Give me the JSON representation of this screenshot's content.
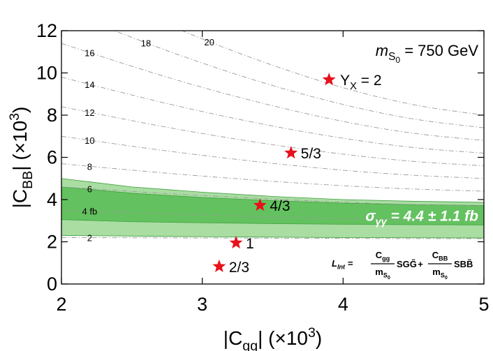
{
  "chart_data": {
    "type": "scatter",
    "x_label": [
      "|C",
      "gg",
      "| (×10",
      "3",
      ")"
    ],
    "y_label": [
      "|C",
      "BB",
      "| (×10",
      "3",
      ")"
    ],
    "xlim": [
      2,
      5
    ],
    "xticks": [
      2,
      3,
      4,
      5
    ],
    "ylim": [
      0,
      12
    ],
    "yticks": [
      0,
      2,
      4,
      6,
      8,
      10,
      12
    ],
    "series": [
      {
        "color": "#e8101a",
        "x": [
          3.12,
          3.24,
          3.41,
          3.63,
          3.9
        ],
        "values": [
          0.83,
          1.95,
          3.73,
          6.21,
          9.68
        ],
        "labels": [
          "2/3",
          "1",
          "4/3",
          "5/3",
          "2"
        ]
      }
    ],
    "last_label_prefix": [
      "Y",
      "X",
      " = "
    ],
    "mass_label": [
      "m",
      "S",
      "0",
      " = 750 GeV"
    ],
    "band": {
      "label": [
        "σ",
        "γγ",
        " = 4.4 ± 1.1 fb"
      ],
      "outer_color": "#a9dda2",
      "inner_color": "#63c25f",
      "edge_color": "#3f9e3d",
      "x": [
        2,
        2.5,
        3,
        3.5,
        4,
        4.5,
        5
      ],
      "outer_upper": [
        5.0,
        4.6,
        4.35,
        4.15,
        4.0,
        3.92,
        3.87
      ],
      "inner_upper": [
        4.6,
        4.3,
        4.1,
        3.95,
        3.83,
        3.76,
        3.72
      ],
      "inner_lower": [
        3.05,
        2.95,
        2.9,
        2.86,
        2.83,
        2.81,
        2.8
      ],
      "outer_lower": [
        2.3,
        2.27,
        2.24,
        2.22,
        2.2,
        2.19,
        2.18
      ]
    },
    "contours": {
      "color": "#9a9a9a",
      "x": [
        2,
        2.5,
        3,
        3.5,
        4,
        4.5,
        5
      ],
      "lines": [
        {
          "label": "2",
          "values": [
            2.2,
            2.19,
            2.18,
            2.17,
            2.16,
            2.15,
            2.15
          ]
        },
        {
          "label": "4 fb",
          "values": [
            3.5,
            3.38,
            3.27,
            3.18,
            3.1,
            3.03,
            3.0
          ]
        },
        {
          "label": "6",
          "values": [
            4.6,
            4.38,
            4.19,
            4.02,
            3.87,
            3.76,
            3.7
          ]
        },
        {
          "label": "8",
          "values": [
            5.7,
            5.39,
            5.11,
            4.86,
            4.65,
            4.49,
            4.4
          ]
        },
        {
          "label": "10",
          "values": [
            7.0,
            6.52,
            6.09,
            5.71,
            5.38,
            5.14,
            5.0
          ]
        },
        {
          "label": "12",
          "values": [
            8.4,
            7.73,
            7.12,
            6.59,
            6.14,
            5.79,
            5.6
          ]
        },
        {
          "label": "14",
          "values": [
            9.8,
            8.94,
            8.16,
            7.47,
            6.89,
            6.44,
            6.2
          ]
        },
        {
          "label": "16",
          "values": [
            11.4,
            10.3,
            9.3,
            8.43,
            7.68,
            7.11,
            6.8
          ]
        },
        {
          "label": "18",
          "values": [
            13,
            11.66,
            10.45,
            9.38,
            8.48,
            7.78,
            7.4
          ]
        },
        {
          "label": "20",
          "values": [
            14.6,
            13.02,
            11.59,
            10.34,
            9.27,
            8.45,
            8.0
          ]
        }
      ]
    },
    "formula": {
      "lhs": [
        "L",
        "Int",
        " ="
      ],
      "frac1": {
        "num": [
          "C",
          "gg"
        ],
        "den": [
          "m",
          "S",
          "0"
        ]
      },
      "term1": "SGG̃",
      "plus": "+",
      "frac2": {
        "num": [
          "C",
          "BB"
        ],
        "den": [
          "m",
          "S",
          "0"
        ]
      },
      "term2": "SBB̃"
    }
  }
}
